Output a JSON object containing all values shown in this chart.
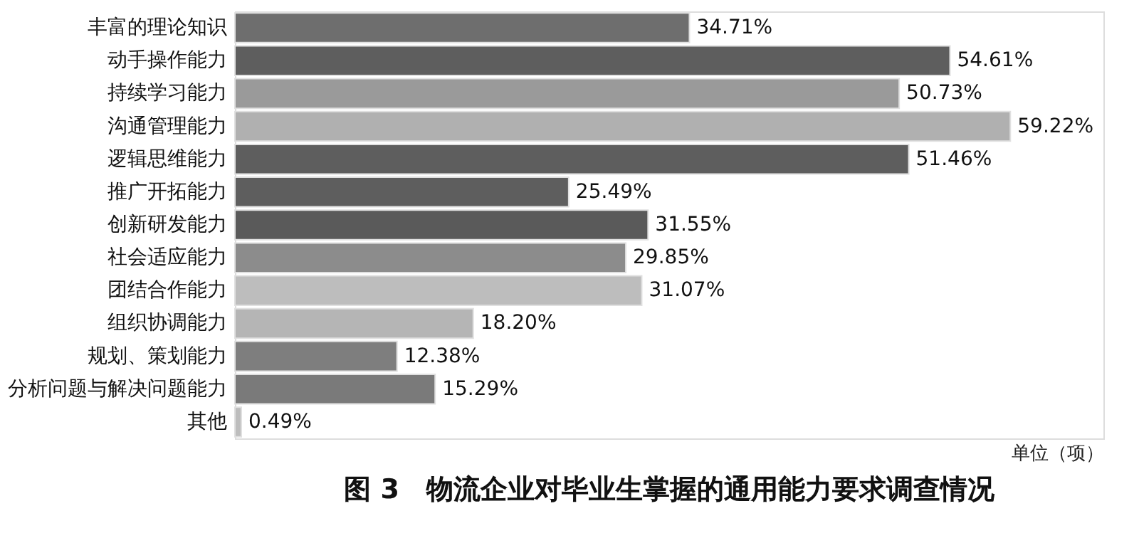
{
  "chart_data": {
    "type": "bar",
    "orientation": "horizontal",
    "title": "图 3　物流企业对毕业生掌握的通用能力要求调查情况",
    "categories": [
      "丰富的理论知识",
      "动手操作能力",
      "持续学习能力",
      "沟通管理能力",
      "逻辑思维能力",
      "推广开拓能力",
      "创新研发能力",
      "社会适应能力",
      "团结合作能力",
      "组织协调能力",
      "规划、策划能力",
      "分析问题与解决问题能力",
      "其他"
    ],
    "values": [
      34.71,
      54.61,
      50.73,
      59.22,
      51.46,
      25.49,
      31.55,
      29.85,
      31.07,
      18.2,
      12.38,
      15.29,
      0.49
    ],
    "value_labels": [
      "34.71%",
      "54.61%",
      "50.73%",
      "59.22%",
      "51.46%",
      "25.49%",
      "31.55%",
      "29.85%",
      "31.07%",
      "18.20%",
      "12.38%",
      "15.29%",
      "0.49%"
    ],
    "colors": [
      "#6e6e6e",
      "#5e5e5e",
      "#9a9a9a",
      "#b0b0b0",
      "#5e5e5e",
      "#5e5e5e",
      "#5a5a5a",
      "#8c8c8c",
      "#bdbdbd",
      "#b5b5b5",
      "#7e7e7e",
      "#7a7a7a",
      "#bdbdbd"
    ],
    "annotations": [
      "单位（项）"
    ],
    "grid": false
  }
}
